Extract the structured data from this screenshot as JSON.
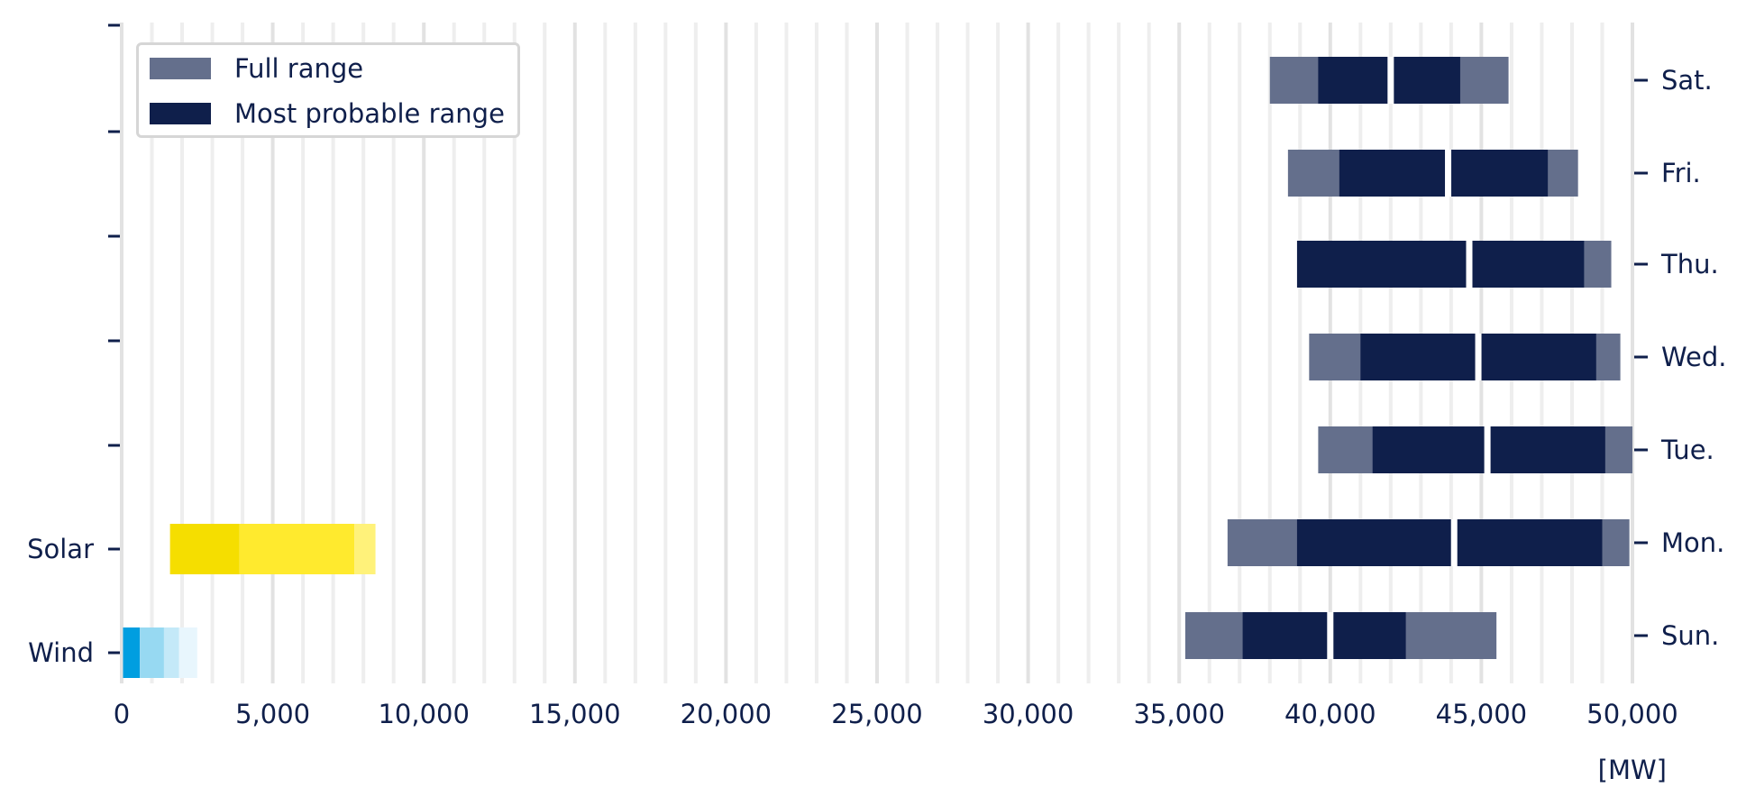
{
  "chart_data": {
    "type": "bar",
    "orientation": "horizontal",
    "unit_label": "[MW]",
    "xlim": [
      0,
      50000
    ],
    "xticks": [
      "0",
      "5,000",
      "10,000",
      "15,000",
      "20,000",
      "25,000",
      "30,000",
      "35,000",
      "40,000",
      "45,000",
      "50,000"
    ],
    "xtick_values": [
      0,
      5000,
      10000,
      15000,
      20000,
      25000,
      30000,
      35000,
      40000,
      45000,
      50000
    ],
    "grid": "vertical",
    "legend_position": "top-left",
    "legend": [
      {
        "label": "Full range",
        "color": "#646f8c"
      },
      {
        "label": "Most probable range",
        "color": "#0f1f4b"
      }
    ],
    "left_categories": [
      "Wind",
      "Solar",
      "",
      "",
      "",
      "",
      ""
    ],
    "right_categories": [
      "Sun.",
      "Mon.",
      "Tue.",
      "Wed.",
      "Thu.",
      "Fri.",
      "Sat."
    ],
    "demand": [
      {
        "day": "Sun.",
        "full_range": [
          35200,
          45500
        ],
        "most_probable_range": [
          37100,
          42500
        ],
        "split": 40000
      },
      {
        "day": "Mon.",
        "full_range": [
          36600,
          49900
        ],
        "most_probable_range": [
          38900,
          49000
        ],
        "split": 44100
      },
      {
        "day": "Tue.",
        "full_range": [
          39600,
          50000
        ],
        "most_probable_range": [
          41400,
          49100
        ],
        "split": 45200
      },
      {
        "day": "Wed.",
        "full_range": [
          39300,
          49600
        ],
        "most_probable_range": [
          41000,
          48800
        ],
        "split": 44900
      },
      {
        "day": "Thu.",
        "full_range": [
          39000,
          49300
        ],
        "most_probable_range": [
          38900,
          48400
        ],
        "split": 44600
      },
      {
        "day": "Fri.",
        "full_range": [
          38600,
          48200
        ],
        "most_probable_range": [
          40300,
          47200
        ],
        "split": 43900
      },
      {
        "day": "Sat.",
        "full_range": [
          38000,
          45900
        ],
        "most_probable_range": [
          39600,
          44300
        ],
        "split": 42000
      }
    ],
    "solar": {
      "segments": [
        {
          "from": 1600,
          "to": 3900,
          "color": "#f5de00"
        },
        {
          "from": 3900,
          "to": 7700,
          "color": "#ffea2e"
        },
        {
          "from": 7700,
          "to": 8400,
          "color": "#fff27a"
        }
      ]
    },
    "wind": {
      "segments": [
        {
          "from": 0,
          "to": 600,
          "color": "#009ee0"
        },
        {
          "from": 600,
          "to": 1400,
          "color": "#97d9f2"
        },
        {
          "from": 1400,
          "to": 1900,
          "color": "#c4e9f8"
        },
        {
          "from": 1900,
          "to": 2500,
          "color": "#e8f6fd"
        }
      ]
    }
  }
}
